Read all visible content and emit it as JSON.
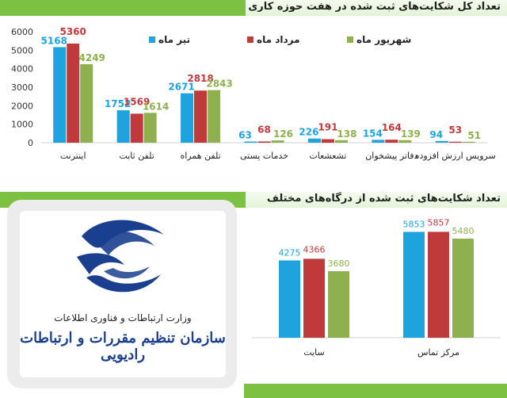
{
  "header1": {
    "title": "تعداد کل شکایت‌های ثبت شده در هفت حوزه کاری"
  },
  "header2": {
    "title": "تعداد شکایت‌های ثبت شده از درگاه‌های مختلف"
  },
  "logo": {
    "line1": "وزارت ارتباطات و فناوری اطلاعات",
    "line2": "سازمان تنظیم مقررات و ارتباطات رادیویی"
  },
  "colors": {
    "tir": "#1ea3de",
    "mordad": "#c0393b",
    "shahrivar": "#8fb04e",
    "accent_green": "#7cc142"
  },
  "chart_data": [
    {
      "type": "bar",
      "categories": [
        "اینترنت",
        "تلفن ثابت",
        "تلفن همراه",
        "خدمات پستی",
        "تشعشعات",
        "دفاتر پیشخوان",
        "سرویس ارزش افزوده"
      ],
      "series": [
        {
          "name": "تیر ماه",
          "color": "#1ea3de",
          "values": [
            5168,
            1752,
            2671,
            63,
            226,
            154,
            94
          ]
        },
        {
          "name": "مرداد ماه",
          "color": "#c0393b",
          "values": [
            5360,
            1569,
            2818,
            68,
            191,
            164,
            53
          ]
        },
        {
          "name": "شهریور ماه",
          "color": "#8fb04e",
          "values": [
            4249,
            1614,
            2843,
            126,
            138,
            139,
            51
          ]
        }
      ],
      "yticks": [
        0,
        1000,
        2000,
        3000,
        4000,
        5000,
        6000
      ],
      "ylim": [
        0,
        6000
      ],
      "grid": false,
      "legend": "top"
    },
    {
      "type": "bar",
      "categories": [
        "سایت",
        "مرکز تماس"
      ],
      "series": [
        {
          "name": "تیر ماه",
          "color": "#1ea3de",
          "values": [
            4275,
            5853
          ]
        },
        {
          "name": "مرداد ماه",
          "color": "#c0393b",
          "values": [
            4366,
            5857
          ]
        },
        {
          "name": "شهریور ماه",
          "color": "#8fb04e",
          "values": [
            3680,
            5480
          ]
        }
      ],
      "ylim": [
        0,
        6400
      ],
      "grid": false,
      "legend": "none"
    }
  ]
}
